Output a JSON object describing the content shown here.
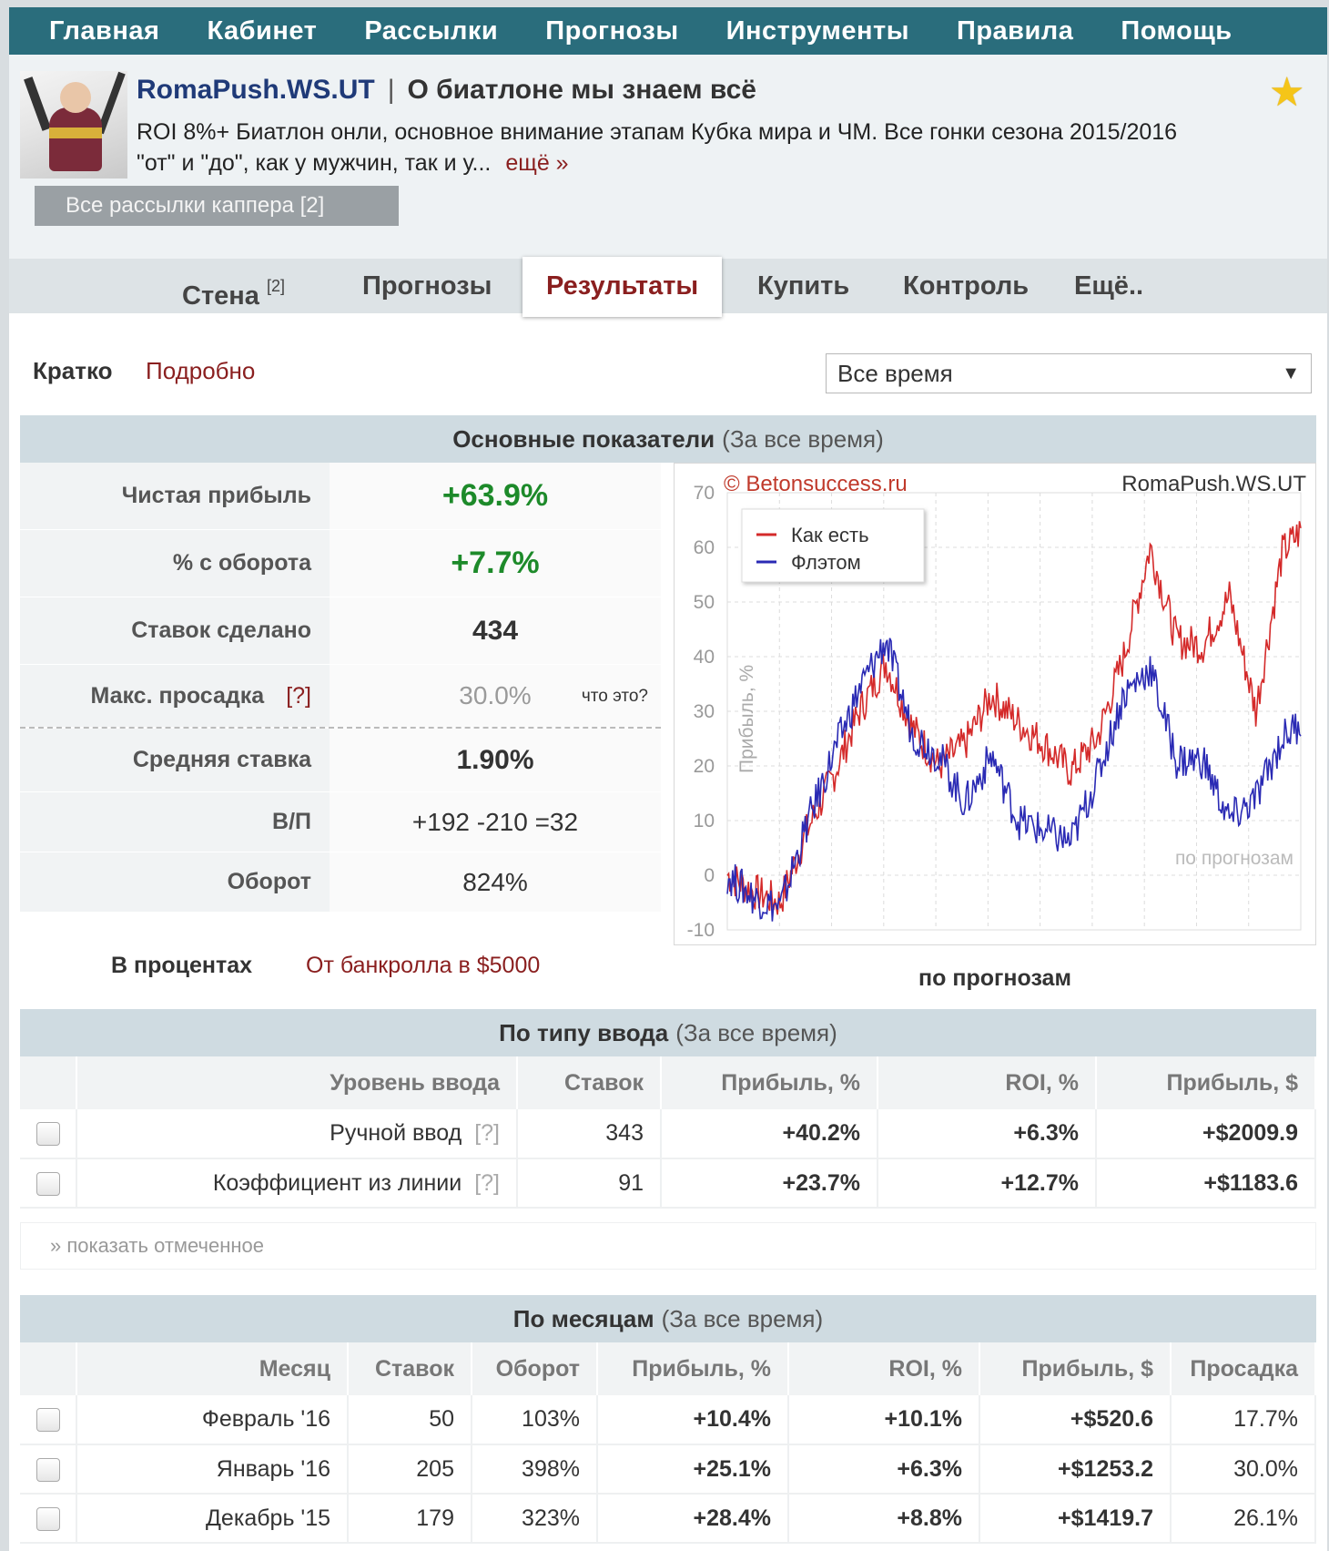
{
  "nav": [
    "Главная",
    "Кабинет",
    "Рассылки",
    "Прогнозы",
    "Инструменты",
    "Правила",
    "Помощь"
  ],
  "header": {
    "name": "RomaPush.WS.UT",
    "separator": "|",
    "tagline": "О биатлоне мы знаем всё",
    "description": "ROI 8%+ Биатлон онли, основное внимание этапам Кубка мира и ЧМ. Все гонки сезона 2015/2016 \"от\" и \"до\", как у мужчин, так и у...",
    "more": "ещё »",
    "all_button": "Все рассылки каппера [2]"
  },
  "tabs": {
    "wall": "Стена",
    "wall_count": "[2]",
    "forecasts": "Прогнозы",
    "results": "Результаты",
    "buy": "Купить",
    "control": "Контроль",
    "more": "Ещё.."
  },
  "mode": {
    "brief": "Кратко",
    "detailed": "Подробно",
    "period": "Все время"
  },
  "main_stats": {
    "title": "Основные показатели",
    "period": "(За все время)",
    "rows": [
      {
        "label": "Чистая прибыль",
        "value": "+63.9%"
      },
      {
        "label": "% с оборота",
        "value": "+7.7%"
      },
      {
        "label": "Ставок сделано",
        "value": "434"
      },
      {
        "label": "Макс. просадка",
        "value": "30.0%",
        "hint": "[?]",
        "note": "что это?"
      },
      {
        "label": "Средняя ставка",
        "value": "1.90%"
      },
      {
        "label": "В/П",
        "value": "+192 -210 =32"
      },
      {
        "label": "Оборот",
        "value": "824%"
      }
    ],
    "in_percent": "В процентах",
    "from_bankroll": "От банкролла в $5000"
  },
  "chart_data": {
    "type": "line",
    "watermark": "© Betonsuccess.ru",
    "author": "RomaPush.WS.UT",
    "ylabel": "Прибыль, %",
    "note": "по прогнозам",
    "caption": "по прогнозам",
    "ylim": [
      -10,
      70
    ],
    "yticks": [
      "70",
      "60",
      "50",
      "40",
      "30",
      "20",
      "10",
      "0",
      "-10"
    ],
    "grid": true,
    "legend_position": "top-left",
    "x": [
      0,
      20,
      40,
      60,
      80,
      100,
      120,
      140,
      160,
      180,
      200,
      220,
      240,
      260,
      280,
      300,
      320,
      340,
      360,
      380,
      400,
      420,
      434
    ],
    "series": [
      {
        "name": "Как есть",
        "color": "#d42a2a",
        "values": [
          0,
          -3,
          -5,
          8,
          18,
          30,
          39,
          27,
          20,
          24,
          33,
          28,
          24,
          19,
          25,
          40,
          60,
          43,
          42,
          51,
          30,
          59,
          63
        ]
      },
      {
        "name": "Флэтом",
        "color": "#2a2ab4",
        "values": [
          0,
          -4,
          -6,
          9,
          22,
          34,
          43,
          26,
          22,
          13,
          22,
          10,
          8,
          6,
          18,
          33,
          38,
          21,
          21,
          10,
          14,
          25,
          28
        ]
      }
    ]
  },
  "by_type": {
    "title": "По типу ввода",
    "period": "(За все время)",
    "columns": [
      "Уровень ввода",
      "Ставок",
      "Прибыль, %",
      "ROI, %",
      "Прибыль, $"
    ],
    "rows": [
      {
        "level": "Ручной ввод",
        "hint": "[?]",
        "bets": "343",
        "profit_pct": "+40.2%",
        "roi": "+6.3%",
        "profit_usd": "+$2009.9"
      },
      {
        "level": "Коэффициент из линии",
        "hint": "[?]",
        "bets": "91",
        "profit_pct": "+23.7%",
        "roi": "+12.7%",
        "profit_usd": "+$1183.6"
      }
    ],
    "show_marked": "» показать отмеченное"
  },
  "by_month": {
    "title": "По месяцам",
    "period": "(За все время)",
    "columns": [
      "Месяц",
      "Ставок",
      "Оборот",
      "Прибыль, %",
      "ROI, %",
      "Прибыль, $",
      "Просадка"
    ],
    "rows": [
      {
        "month": "Февраль '16",
        "bets": "50",
        "turnover": "103%",
        "profit_pct": "+10.4%",
        "roi": "+10.1%",
        "profit_usd": "+$520.6",
        "drawdown": "17.7%"
      },
      {
        "month": "Январь '16",
        "bets": "205",
        "turnover": "398%",
        "profit_pct": "+25.1%",
        "roi": "+6.3%",
        "profit_usd": "+$1253.2",
        "drawdown": "30.0%"
      },
      {
        "month": "Декабрь '15",
        "bets": "179",
        "turnover": "323%",
        "profit_pct": "+28.4%",
        "roi": "+8.8%",
        "profit_usd": "+$1419.7",
        "drawdown": "26.1%"
      }
    ]
  }
}
